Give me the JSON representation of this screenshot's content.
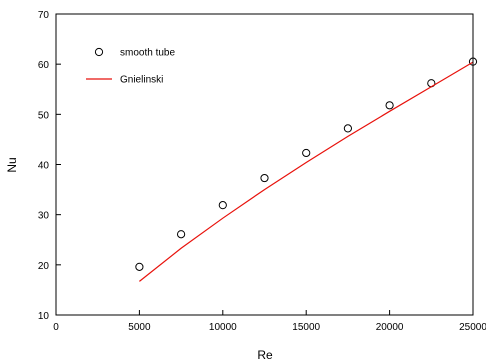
{
  "chart_data": {
    "type": "scatter",
    "xlabel": "Re",
    "ylabel": "Nu",
    "xlim": [
      0,
      25000
    ],
    "ylim": [
      10,
      70
    ],
    "xticks": [
      0,
      5000,
      10000,
      15000,
      20000,
      25000
    ],
    "yticks": [
      10,
      20,
      30,
      40,
      50,
      60,
      70
    ],
    "grid": false,
    "legend_position": "top-left",
    "series": [
      {
        "name": "smooth tube",
        "kind": "scatter",
        "marker": "open-circle",
        "color": "#000000",
        "x": [
          5000,
          7500,
          10000,
          12500,
          15000,
          17500,
          20000,
          22500,
          25000
        ],
        "y": [
          19.6,
          26.1,
          31.9,
          37.3,
          42.3,
          47.2,
          51.8,
          56.2,
          60.5
        ]
      },
      {
        "name": "Gnielinski",
        "kind": "line",
        "color": "#e8120c",
        "x": [
          5000,
          7500,
          10000,
          12500,
          15000,
          17500,
          20000,
          22500,
          25000
        ],
        "y": [
          16.7,
          23.3,
          29.3,
          35.0,
          40.4,
          45.6,
          50.6,
          55.5,
          60.4
        ]
      }
    ]
  }
}
